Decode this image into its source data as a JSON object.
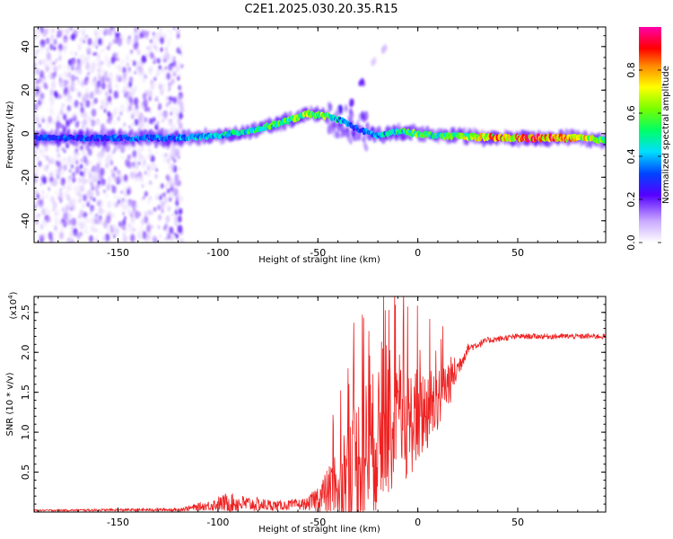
{
  "title": "C2E1.2025.030.20.35.R15",
  "colors": {
    "snr_line": "#ee2222",
    "background": "#ffffff",
    "axis": "#000000"
  },
  "chart_data": [
    {
      "type": "heatmap",
      "name": "spectrogram",
      "xlabel": "Height of straight line (km)",
      "ylabel": "Frequency (Hz)",
      "xlim": [
        -192,
        94
      ],
      "ylim": [
        -50,
        49
      ],
      "x_ticks": [
        -150,
        -100,
        -50,
        0,
        50
      ],
      "x_tick_labels": [
        "-150",
        "-100",
        "-50",
        "0",
        "50"
      ],
      "y_ticks": [
        -40,
        -20,
        0,
        20,
        40
      ],
      "y_tick_labels": [
        "-40",
        "-20",
        "0",
        "20",
        "40"
      ],
      "colorbar": {
        "label": "Normalized spectral amplitude",
        "range": [
          0,
          1
        ],
        "ticks": [
          0.0,
          0.2,
          0.4,
          0.6,
          0.8
        ],
        "tick_labels": [
          "0.0",
          "0.2",
          "0.4",
          "0.6",
          "0.8"
        ]
      },
      "noise_region": {
        "x_range": [
          -192,
          -118
        ],
        "y_range": [
          -50,
          49
        ],
        "amplitude_range": [
          0.03,
          0.22
        ]
      },
      "ridge": [
        {
          "x": -192,
          "f": -2,
          "amp": 0.3
        },
        {
          "x": -160,
          "f": -2,
          "amp": 0.32
        },
        {
          "x": -120,
          "f": -2,
          "amp": 0.35
        },
        {
          "x": -100,
          "f": -1,
          "amp": 0.45
        },
        {
          "x": -80,
          "f": 2,
          "amp": 0.5
        },
        {
          "x": -65,
          "f": 6,
          "amp": 0.55
        },
        {
          "x": -55,
          "f": 9,
          "amp": 0.65
        },
        {
          "x": -45,
          "f": 8,
          "amp": 0.6
        },
        {
          "x": -38,
          "f": 6,
          "amp": 0.4
        },
        {
          "x": -30,
          "f": 2,
          "amp": 0.3
        },
        {
          "x": -20,
          "f": -1,
          "amp": 0.4
        },
        {
          "x": -10,
          "f": 1,
          "amp": 0.5
        },
        {
          "x": 0,
          "f": 0,
          "amp": 0.6
        },
        {
          "x": 10,
          "f": -1,
          "amp": 0.5
        },
        {
          "x": 20,
          "f": -1,
          "amp": 0.6
        },
        {
          "x": 40,
          "f": -2,
          "amp": 0.8
        },
        {
          "x": 60,
          "f": -2,
          "amp": 0.85
        },
        {
          "x": 80,
          "f": -2,
          "amp": 0.8
        },
        {
          "x": 94,
          "f": -3,
          "amp": 0.6
        }
      ],
      "spurs": [
        {
          "x": -38,
          "f": 11,
          "amp": 0.25
        },
        {
          "x": -33,
          "f": 14,
          "amp": 0.2
        },
        {
          "x": -28,
          "f": 24,
          "amp": 0.2
        },
        {
          "x": -17,
          "f": 39,
          "amp": 0.08
        },
        {
          "x": -22,
          "f": 33,
          "amp": 0.06
        }
      ]
    },
    {
      "type": "line",
      "name": "snr",
      "xlabel": "Height of straight line (km)",
      "ylabel": "SNR (10 * v/v)",
      "y_multiplier_label": "(x10",
      "y_multiplier_exponent": "4",
      "y_multiplier_suffix": ")",
      "xlim": [
        -192,
        94
      ],
      "ylim": [
        0,
        2.7
      ],
      "x_ticks": [
        -150,
        -100,
        -50,
        0,
        50
      ],
      "x_tick_labels": [
        "-150",
        "-100",
        "-50",
        "0",
        "50"
      ],
      "y_ticks": [
        0.5,
        1.0,
        1.5,
        2.0,
        2.5
      ],
      "y_tick_labels": [
        "0.5",
        "1.0",
        "1.5",
        "2.0",
        "2.5"
      ],
      "envelope": [
        {
          "x": -192,
          "base": 0.02,
          "spread": 0.02
        },
        {
          "x": -120,
          "base": 0.03,
          "spread": 0.04
        },
        {
          "x": -105,
          "base": 0.08,
          "spread": 0.12
        },
        {
          "x": -95,
          "base": 0.12,
          "spread": 0.25
        },
        {
          "x": -85,
          "base": 0.1,
          "spread": 0.2
        },
        {
          "x": -70,
          "base": 0.08,
          "spread": 0.12
        },
        {
          "x": -55,
          "base": 0.1,
          "spread": 0.15
        },
        {
          "x": -45,
          "base": 0.25,
          "spread": 0.6
        },
        {
          "x": -35,
          "base": 0.5,
          "spread": 1.5
        },
        {
          "x": -25,
          "base": 0.8,
          "spread": 1.9
        },
        {
          "x": -15,
          "base": 1.0,
          "spread": 1.6
        },
        {
          "x": -5,
          "base": 1.1,
          "spread": 1.4
        },
        {
          "x": 5,
          "base": 1.3,
          "spread": 1.1
        },
        {
          "x": 15,
          "base": 1.6,
          "spread": 0.7
        },
        {
          "x": 20,
          "base": 1.8,
          "spread": 0.3
        },
        {
          "x": 25,
          "base": 2.05,
          "spread": 0.12
        },
        {
          "x": 35,
          "base": 2.15,
          "spread": 0.08
        },
        {
          "x": 50,
          "base": 2.2,
          "spread": 0.07
        },
        {
          "x": 70,
          "base": 2.2,
          "spread": 0.07
        },
        {
          "x": 94,
          "base": 2.2,
          "spread": 0.07
        }
      ]
    }
  ]
}
